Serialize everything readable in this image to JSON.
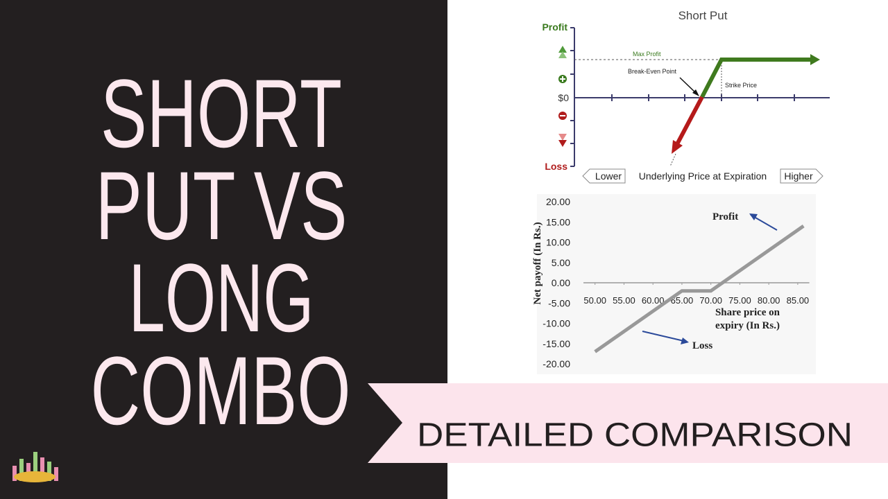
{
  "headline": {
    "lines": [
      "SHORT",
      "PUT VS",
      "LONG",
      "COMBO"
    ]
  },
  "banner": {
    "text": "DETAILED COMPARISON"
  },
  "diagram": {
    "title": "Short Put",
    "profit": "Profit",
    "zero": "$0",
    "loss": "Loss",
    "max_profit": "Max Profit",
    "break_even": "Break-Even Point",
    "strike": "Strike Price",
    "lower": "Lower",
    "axis_label": "Underlying Price at Expiration",
    "higher": "Higher"
  },
  "chart_data": {
    "type": "line",
    "x": [
      50,
      65,
      70,
      86
    ],
    "values": [
      -17,
      -2,
      -2,
      14
    ],
    "color": "#999999",
    "xlim": [
      48,
      87
    ],
    "ylim": [
      -20,
      20
    ],
    "xticks": [
      {
        "value": 50,
        "label": "50.00"
      },
      {
        "value": 55,
        "label": "55.00"
      },
      {
        "value": 60,
        "label": "60.00"
      },
      {
        "value": 65,
        "label": "65.00"
      },
      {
        "value": 70,
        "label": "70.00"
      },
      {
        "value": 75,
        "label": "75.00"
      },
      {
        "value": 80,
        "label": "80.00"
      },
      {
        "value": 85,
        "label": "85.00"
      }
    ],
    "yticks": [
      {
        "value": 20,
        "label": "20.00"
      },
      {
        "value": 15,
        "label": "15.00"
      },
      {
        "value": 10,
        "label": "10.00"
      },
      {
        "value": 5,
        "label": "5.00"
      },
      {
        "value": 0,
        "label": "0.00"
      },
      {
        "value": -5,
        "label": "-5.00"
      },
      {
        "value": -10,
        "label": "-10.00"
      },
      {
        "value": -15,
        "label": "-15.00"
      },
      {
        "value": -20,
        "label": "-20.00"
      }
    ],
    "y_label": "Net payoff (In Rs.)",
    "x_label": "Share price on expiry (In Rs.)",
    "annotations": [
      "Profit",
      "Loss"
    ]
  }
}
